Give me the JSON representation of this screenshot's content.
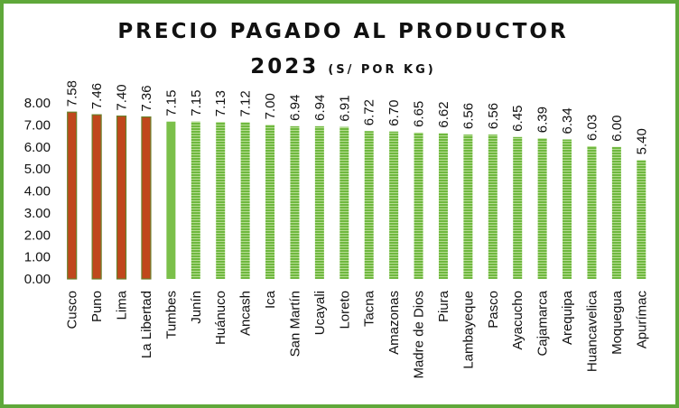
{
  "chart_data": {
    "type": "bar",
    "title_line1": "PRECIO PAGADO AL PRODUCTOR",
    "title_year": "2023",
    "title_unit": "(S/ POR KG)",
    "categories": [
      "Cusco",
      "Puno",
      "Lima",
      "La Libertad",
      "Tumbes",
      "Junín",
      "Huánuco",
      "Ancash",
      "Ica",
      "San Martín",
      "Ucayali",
      "Loreto",
      "Tacna",
      "Amazonas",
      "Madre de Dios",
      "Piura",
      "Lambayeque",
      "Pasco",
      "Ayacucho",
      "Cajamarca",
      "Arequipa",
      "Huancavelica",
      "Moquegua",
      "Apurímac"
    ],
    "values": [
      7.58,
      7.46,
      7.4,
      7.36,
      7.15,
      7.15,
      7.13,
      7.12,
      7.0,
      6.94,
      6.94,
      6.91,
      6.72,
      6.7,
      6.65,
      6.62,
      6.56,
      6.56,
      6.45,
      6.39,
      6.34,
      6.03,
      6.0,
      5.4
    ],
    "data_labels": [
      "7.58",
      "7.46",
      "7.40",
      "7.36",
      "7.15",
      "7.15",
      "7.13",
      "7.12",
      "7.00",
      "6.94",
      "6.94",
      "6.91",
      "6.72",
      "6.70",
      "6.65",
      "6.62",
      "6.56",
      "6.56",
      "6.45",
      "6.39",
      "6.34",
      "6.03",
      "6.00",
      "5.40"
    ],
    "ylim": [
      0,
      8
    ],
    "yticks": [
      "0.00",
      "1.00",
      "2.00",
      "3.00",
      "4.00",
      "5.00",
      "6.00",
      "7.00",
      "8.00"
    ],
    "grid": false,
    "legend": "none",
    "colors": {
      "highlight": "#c0471c",
      "highlight_edge": "#6a7f2a",
      "solid_green": "#7bc04a",
      "striped_green": "#6fb83f",
      "stripe_light": "#b6dd92",
      "border": "#5fa83a"
    },
    "bar_styles": [
      "highlight",
      "highlight",
      "highlight",
      "highlight",
      "solid",
      "striped",
      "striped",
      "striped",
      "striped",
      "striped",
      "striped",
      "striped",
      "striped",
      "striped",
      "striped",
      "striped",
      "striped",
      "striped",
      "striped",
      "striped",
      "striped",
      "striped",
      "striped",
      "striped"
    ]
  }
}
